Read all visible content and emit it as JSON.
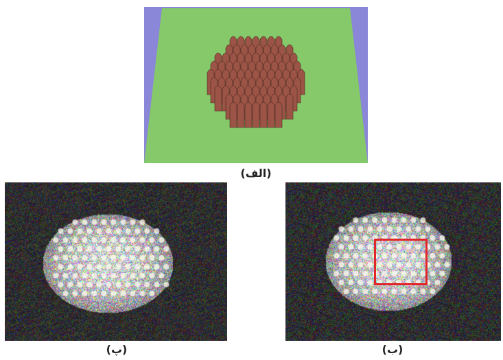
{
  "figure": {
    "panel_top_caption": "(الف)",
    "panel_left_caption": "(پ)",
    "panel_right_caption": "(ب)",
    "colors": {
      "background_purple": "#8a86d8",
      "plate_green": "#86c96a",
      "pillar_brown": "#9b5446",
      "highlight_box": "#e0262b"
    }
  }
}
